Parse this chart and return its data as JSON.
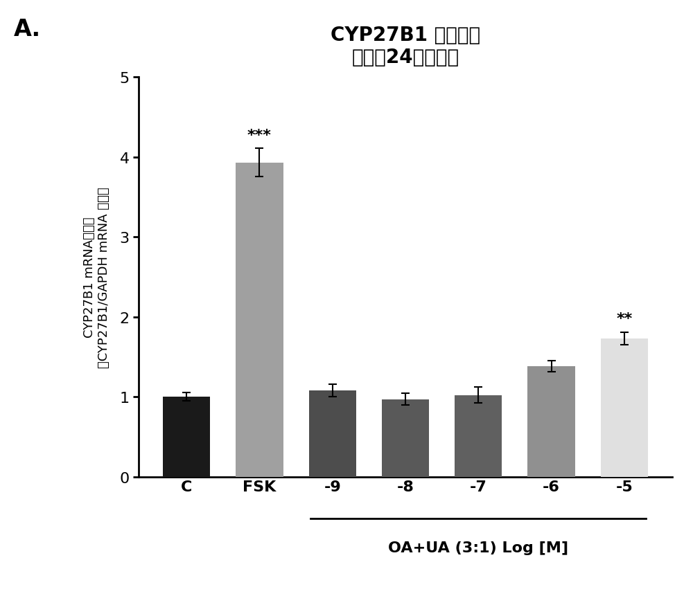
{
  "categories": [
    "C",
    "FSK",
    "-9",
    "-8",
    "-7",
    "-6",
    "-5"
  ],
  "values": [
    1.0,
    3.93,
    1.08,
    0.97,
    1.02,
    1.38,
    1.73
  ],
  "errors": [
    0.05,
    0.18,
    0.08,
    0.07,
    0.1,
    0.07,
    0.08
  ],
  "bar_colors": [
    "#1a1a1a",
    "#a0a0a0",
    "#4d4d4d",
    "#595959",
    "#606060",
    "#909090",
    "#e0e0e0"
  ],
  "title_line1": "CYP27B1 基因表达",
  "title_line2": "（孵育24小时后）",
  "ylabel_line1": "CYP27B1 mRNA表达量",
  "ylabel_line2": "（CYP27B1/GAPDH mRNA 比值）",
  "xlabel_main": "OA+UA (3:1) Log [M]",
  "xlabel_bracket_start": 2,
  "xlabel_bracket_end": 6,
  "ylim": [
    0,
    5
  ],
  "yticks": [
    0,
    1,
    2,
    3,
    4,
    5
  ],
  "significance": {
    "1": "***",
    "6": "**"
  },
  "sig_fontsize": 16,
  "title_fontsize": 20,
  "ylabel_fontsize": 13,
  "xlabel_fontsize": 16,
  "tick_fontsize": 16,
  "label_A": "A.",
  "background_color": "#ffffff"
}
